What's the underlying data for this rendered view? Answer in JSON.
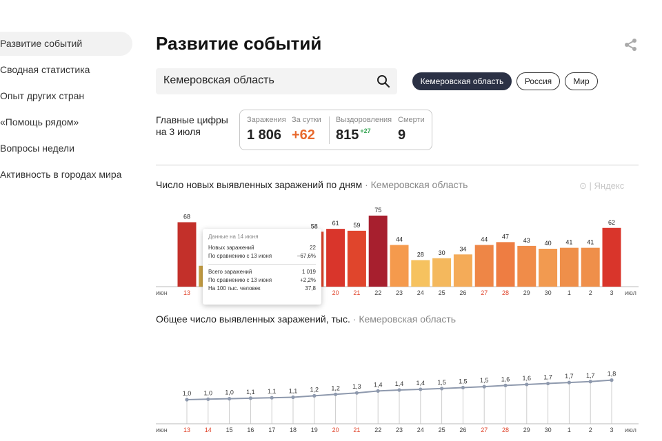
{
  "sidebar": {
    "items": [
      {
        "label": "Развитие событий",
        "active": true
      },
      {
        "label": "Сводная статистика",
        "active": false
      },
      {
        "label": "Опыт других стран",
        "active": false
      },
      {
        "label": "«Помощь рядом»",
        "active": false
      },
      {
        "label": "Вопросы недели",
        "active": false
      },
      {
        "label": "Активность в городах мира",
        "active": false
      }
    ]
  },
  "header": {
    "title": "Развитие событий",
    "share_icon": "share-icon"
  },
  "search": {
    "value": "Кемеровская область",
    "icon": "search-icon"
  },
  "region_tabs": [
    {
      "label": "Кемеровская область",
      "active": true
    },
    {
      "label": "Россия",
      "active": false
    },
    {
      "label": "Мир",
      "active": false
    }
  ],
  "main_figures": {
    "label_line1": "Главные цифры",
    "label_line2": "на 3 июля",
    "infections_label": "Заражения",
    "infections_value": "1 806",
    "daily_label": "За сутки",
    "daily_value": "+62",
    "recovered_label": "Выздоровления",
    "recovered_value": "815",
    "recovered_delta": "+27",
    "deaths_label": "Смерти",
    "deaths_value": "9"
  },
  "watermark": "Яндекс",
  "tooltip": {
    "header": "Данные на 14 июня",
    "new_label": "Новых заражений",
    "new_value": "22",
    "new_cmp_label": "По сравнению с 13 июня",
    "new_cmp_value": "−67,6%",
    "total_label": "Всего заражений",
    "total_value": "1 019",
    "total_cmp_label": "По сравнению с 13 июня",
    "total_cmp_value": "+2,2%",
    "per100_label": "На 100 тыс. человек",
    "per100_value": "37,8"
  },
  "colors": {
    "accent_dark": "#2b3145",
    "orange": "#e8692d",
    "green": "#3aa757",
    "weekend": "#e0442b"
  },
  "chart_data": [
    {
      "type": "bar",
      "title": "Число новых выявленных заражений по дням",
      "subtitle": "Кемеровская область",
      "month_start_label": "июн",
      "month_end_label": "июл",
      "categories": [
        "13",
        "14",
        "15",
        "16",
        "17",
        "18",
        "19",
        "20",
        "21",
        "22",
        "23",
        "24",
        "25",
        "26",
        "27",
        "28",
        "29",
        "30",
        "1",
        "2",
        "3"
      ],
      "weekend": [
        true,
        true,
        false,
        false,
        false,
        false,
        false,
        true,
        true,
        false,
        false,
        false,
        false,
        false,
        true,
        true,
        false,
        false,
        false,
        false,
        false
      ],
      "values": [
        68,
        22,
        null,
        null,
        null,
        null,
        58,
        61,
        59,
        75,
        44,
        28,
        30,
        34,
        44,
        47,
        43,
        40,
        41,
        41,
        62
      ],
      "bar_colors": [
        "#c3302a",
        "#c9a144",
        "#e0452c",
        "#e0452c",
        "#e0452c",
        "#e0452c",
        "#e0452c",
        "#d9352b",
        "#e0452c",
        "#a71f2e",
        "#f59a4d",
        "#f6c25f",
        "#f4b85d",
        "#f4ab58",
        "#ee8646",
        "#ee7d42",
        "#f08c49",
        "#f29a50",
        "#ef8f4a",
        "#ef8f4a",
        "#d9352b"
      ],
      "ylim": [
        0,
        80
      ]
    },
    {
      "type": "line",
      "title": "Общее число выявленных заражений, тыс.",
      "subtitle": "Кемеровская область",
      "month_start_label": "июн",
      "month_end_label": "июл",
      "categories": [
        "13",
        "14",
        "15",
        "16",
        "17",
        "18",
        "19",
        "20",
        "21",
        "22",
        "23",
        "24",
        "25",
        "26",
        "27",
        "28",
        "29",
        "30",
        "1",
        "2",
        "3"
      ],
      "weekend": [
        true,
        true,
        false,
        false,
        false,
        false,
        false,
        true,
        true,
        false,
        false,
        false,
        false,
        false,
        true,
        true,
        false,
        false,
        false,
        false,
        false
      ],
      "values": [
        1.0,
        1.02,
        1.04,
        1.06,
        1.08,
        1.1,
        1.16,
        1.22,
        1.28,
        1.36,
        1.4,
        1.43,
        1.46,
        1.5,
        1.54,
        1.59,
        1.63,
        1.67,
        1.71,
        1.75,
        1.81
      ],
      "value_labels": [
        "1,0",
        "1,0",
        "1,0",
        "1,1",
        "1,1",
        "1,1",
        "1,2",
        "1,2",
        "1,3",
        "1,4",
        "1,4",
        "1,4",
        "1,5",
        "1,5",
        "1,5",
        "1,6",
        "1,6",
        "1,7",
        "1,7",
        "1,7",
        "1,8"
      ],
      "ylim": [
        0,
        2.0
      ]
    }
  ]
}
